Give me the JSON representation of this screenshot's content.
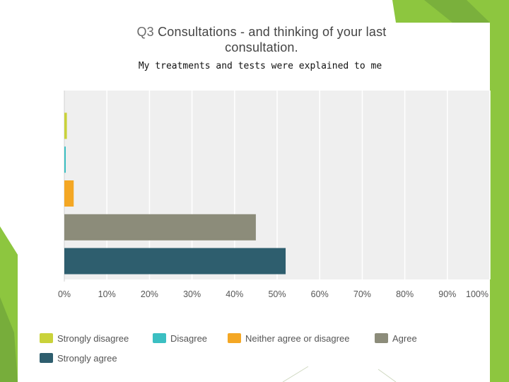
{
  "slide": {
    "title_number": "Q3",
    "title_text_line1": "Consultations - and thinking of your last",
    "title_text_line2": "consultation."
  },
  "theme": {
    "accent_green": "#8dc63f",
    "accent_dark_green": "#6ea23a",
    "plot_background": "#efefef",
    "gridline": "#ffffff"
  },
  "chart_data": {
    "type": "bar",
    "orientation": "horizontal",
    "title": "My treatments and tests were explained to me",
    "categories": [
      "Strongly disagree",
      "Disagree",
      "Neither agree or disagree",
      "Agree",
      "Strongly agree"
    ],
    "values": [
      0.6,
      0.3,
      2.2,
      45,
      52
    ],
    "colors": [
      "#c9d23a",
      "#3bbfc2",
      "#f4a724",
      "#8c8c7a",
      "#2e5e6e"
    ],
    "xlim": [
      0,
      100
    ],
    "x_ticks": [
      "0%",
      "10%",
      "20%",
      "30%",
      "40%",
      "50%",
      "60%",
      "70%",
      "80%",
      "90%",
      "100%"
    ],
    "grid": true,
    "legend": [
      {
        "label": "Strongly disagree",
        "color": "#c9d23a"
      },
      {
        "label": "Disagree",
        "color": "#3bbfc2"
      },
      {
        "label": "Neither agree or disagree",
        "color": "#f4a724"
      },
      {
        "label": "Agree",
        "color": "#8c8c7a"
      },
      {
        "label": "Strongly agree",
        "color": "#2e5e6e"
      }
    ],
    "legend_position": "bottom"
  }
}
